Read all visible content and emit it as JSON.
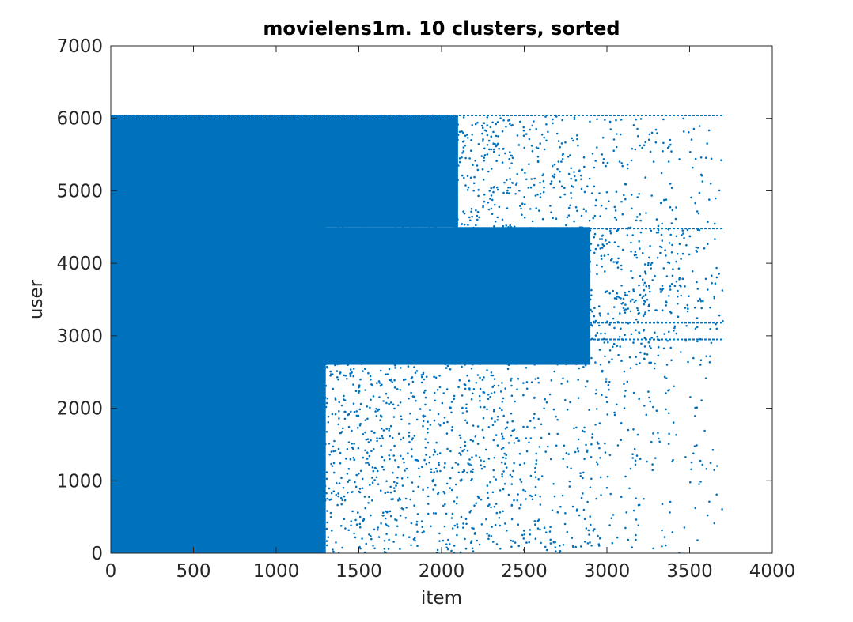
{
  "chart_data": {
    "type": "scatter",
    "title": "movielens1m. 10 clusters, sorted",
    "xlabel": "item",
    "ylabel": "user",
    "xlim": [
      0,
      4000
    ],
    "ylim": [
      0,
      7000
    ],
    "xticks": [
      0,
      500,
      1000,
      1500,
      2000,
      2500,
      3000,
      3500,
      4000
    ],
    "yticks": [
      0,
      1000,
      2000,
      3000,
      4000,
      5000,
      6000,
      7000
    ],
    "xtick_labels": [
      "0",
      "500",
      "1000",
      "1500",
      "2000",
      "2500",
      "3000",
      "3500",
      "4000"
    ],
    "ytick_labels": [
      "0",
      "1000",
      "2000",
      "3000",
      "4000",
      "5000",
      "6000",
      "7000"
    ],
    "marker_color": "#0072BD",
    "grid": false,
    "legend": "none",
    "series": [
      {
        "x_range": [
          1,
          3706
        ],
        "y_range": [
          1,
          6040
        ],
        "dense_regions": [
          {
            "x": [
              0,
              1300
            ],
            "y": [
              0,
              6040
            ]
          },
          {
            "x": [
              0,
              2900
            ],
            "y": [
              2600,
              4500
            ]
          },
          {
            "x": [
              0,
              2100
            ],
            "y": [
              4500,
              6040
            ]
          }
        ],
        "horizontal_lines_y": [
          2950,
          3180,
          4480,
          6040
        ]
      }
    ]
  }
}
